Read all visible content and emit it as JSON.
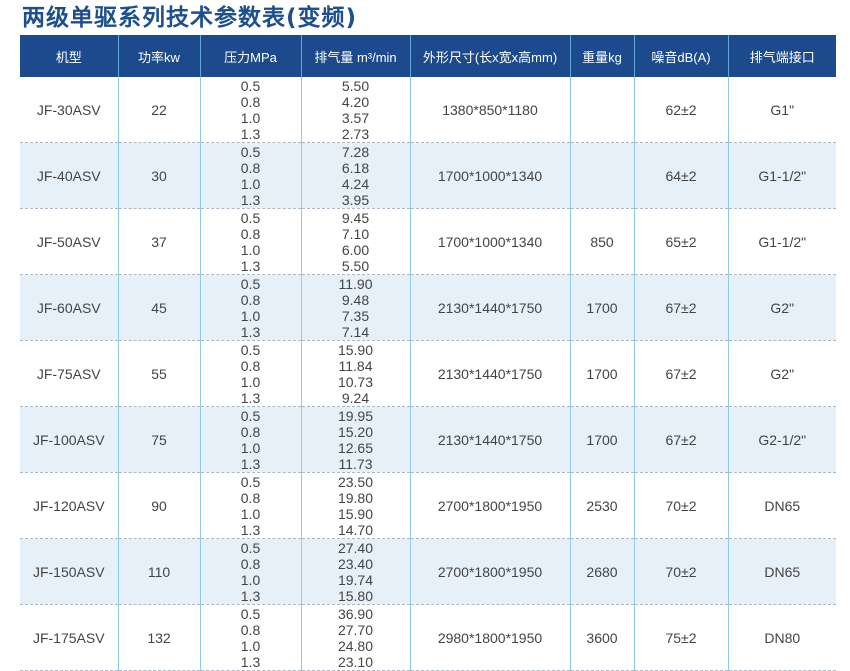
{
  "title": "两级单驱系列技术参数表(变频)",
  "headers": [
    "机型",
    "功率kw",
    "压力MPa",
    "排气量 m³/min",
    "外形尺寸(长x宽x高mm)",
    "重量kg",
    "噪音dB(A)",
    "排气端接口"
  ],
  "rows": [
    {
      "model": "JF-30ASV",
      "power": "22",
      "pressure": [
        "0.5",
        "0.8",
        "1.0",
        "1.3"
      ],
      "flow": [
        "5.50",
        "4.20",
        "3.57",
        "2.73"
      ],
      "dims": "1380*850*1180",
      "weight": "",
      "noise": "62±2",
      "port": "G1\""
    },
    {
      "model": "JF-40ASV",
      "power": "30",
      "pressure": [
        "0.5",
        "0.8",
        "1.0",
        "1.3"
      ],
      "flow": [
        "7.28",
        "6.18",
        "4.24",
        "3.95"
      ],
      "dims": "1700*1000*1340",
      "weight": "",
      "noise": "64±2",
      "port": "G1-1/2\""
    },
    {
      "model": "JF-50ASV",
      "power": "37",
      "pressure": [
        "0.5",
        "0.8",
        "1.0",
        "1.3"
      ],
      "flow": [
        "9.45",
        "7.10",
        "6.00",
        "5.50"
      ],
      "dims": "1700*1000*1340",
      "weight": "850",
      "noise": "65±2",
      "port": "G1-1/2\""
    },
    {
      "model": "JF-60ASV",
      "power": "45",
      "pressure": [
        "0.5",
        "0.8",
        "1.0",
        "1.3"
      ],
      "flow": [
        "11.90",
        "9.48",
        "7.35",
        "7.14"
      ],
      "dims": "2130*1440*1750",
      "weight": "1700",
      "noise": "67±2",
      "port": "G2\""
    },
    {
      "model": "JF-75ASV",
      "power": "55",
      "pressure": [
        "0.5",
        "0.8",
        "1.0",
        "1.3"
      ],
      "flow": [
        "15.90",
        "11.84",
        "10.73",
        "9.24"
      ],
      "dims": "2130*1440*1750",
      "weight": "1700",
      "noise": "67±2",
      "port": "G2\""
    },
    {
      "model": "JF-100ASV",
      "power": "75",
      "pressure": [
        "0.5",
        "0.8",
        "1.0",
        "1.3"
      ],
      "flow": [
        "19.95",
        "15.20",
        "12.65",
        "11.73"
      ],
      "dims": "2130*1440*1750",
      "weight": "1700",
      "noise": "67±2",
      "port": "G2-1/2\""
    },
    {
      "model": "JF-120ASV",
      "power": "90",
      "pressure": [
        "0.5",
        "0.8",
        "1.0",
        "1.3"
      ],
      "flow": [
        "23.50",
        "19.80",
        "15.90",
        "14.70"
      ],
      "dims": "2700*1800*1950",
      "weight": "2530",
      "noise": "70±2",
      "port": "DN65"
    },
    {
      "model": "JF-150ASV",
      "power": "110",
      "pressure": [
        "0.5",
        "0.8",
        "1.0",
        "1.3"
      ],
      "flow": [
        "27.40",
        "23.40",
        "19.74",
        "15.80"
      ],
      "dims": "2700*1800*1950",
      "weight": "2680",
      "noise": "70±2",
      "port": "DN65"
    },
    {
      "model": "JF-175ASV",
      "power": "132",
      "pressure": [
        "0.5",
        "0.8",
        "1.0",
        "1.3"
      ],
      "flow": [
        "36.90",
        "27.70",
        "24.80",
        "23.10"
      ],
      "dims": "2980*1800*1950",
      "weight": "3600",
      "noise": "75±2",
      "port": "DN80"
    }
  ]
}
